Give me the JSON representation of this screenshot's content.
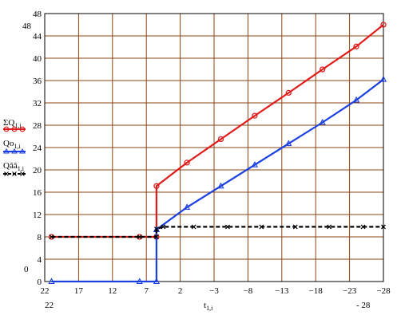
{
  "chart_data": {
    "type": "line",
    "xlabel": "t",
    "xlabel_subscript": "1,i",
    "x_reversed": true,
    "xlim": [
      22,
      -28
    ],
    "ylim": [
      0,
      48
    ],
    "grid": true,
    "x_ticks": [
      22,
      17,
      12,
      7,
      2,
      -3,
      -8,
      -13,
      -18,
      -23,
      -28
    ],
    "x_tick_labels": [
      "22",
      "17",
      "12",
      "7",
      "2",
      "−3",
      "−8",
      "−13",
      "−18",
      "−23",
      "−28"
    ],
    "y_ticks": [
      0,
      4,
      8,
      12,
      16,
      20,
      24,
      28,
      32,
      36,
      40,
      44,
      48
    ],
    "y_tick_labels": [
      "0",
      "4",
      "8",
      "12",
      "16",
      "20",
      "24",
      "28",
      "32",
      "36",
      "40",
      "44",
      "48"
    ],
    "x_min_label": "22",
    "x_max_label": "- 28",
    "y_min_label": "0",
    "y_max_label": "48",
    "legend_position": "left",
    "series": [
      {
        "name": "ΣQ",
        "subscript": "1,i",
        "color": "#e01b1b",
        "marker": "circle",
        "dash": "solid",
        "x": [
          21,
          8,
          5.5,
          5.5,
          1,
          -4,
          -9,
          -14,
          -19,
          -24,
          -28
        ],
        "y": [
          8,
          8,
          8,
          17.1,
          21.3,
          25.5,
          29.7,
          33.8,
          38.0,
          42.1,
          46.0
        ]
      },
      {
        "name": "Qo",
        "subscript": "1,i",
        "color": "#1b3fe0",
        "marker": "triangle",
        "dash": "solid",
        "x": [
          21,
          8,
          5.5,
          5.5,
          1,
          -4,
          -9,
          -14,
          -19,
          -24,
          -28
        ],
        "y": [
          0,
          0,
          0,
          9.3,
          13.3,
          17.1,
          20.9,
          24.7,
          28.5,
          32.5,
          36.2
        ]
      },
      {
        "name": "Qââ",
        "subscript": "1,i",
        "color": "#000000",
        "marker": "x",
        "dash": "dashed",
        "x": [
          21,
          8,
          5.5,
          5.5,
          4.5,
          0,
          -5,
          -10,
          -15,
          -20,
          -25,
          -28
        ],
        "y": [
          8,
          8,
          8,
          9.4,
          9.8,
          9.8,
          9.8,
          9.8,
          9.8,
          9.8,
          9.8,
          9.8
        ]
      }
    ]
  }
}
